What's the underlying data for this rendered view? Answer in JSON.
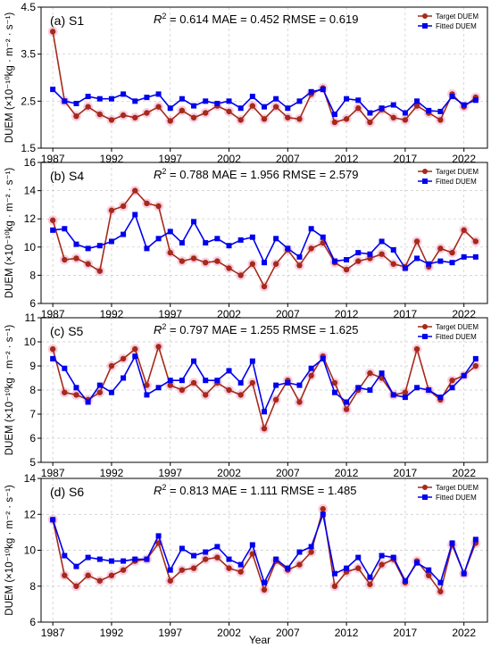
{
  "chart_data": [
    {
      "type": "line",
      "panel_label": "(a) S1",
      "stats": {
        "r2": "0.614",
        "mae": "MAE = 0.452",
        "rmse": "RMSE = 0.619"
      },
      "ylabel": "DUEM (×10⁻¹⁰kg · m⁻² · s⁻¹)",
      "ylim": [
        1.5,
        4.5
      ],
      "yticks": [
        "1.5",
        "2.5",
        "3.5",
        "4.5"
      ],
      "xlim": [
        1986,
        2024
      ],
      "xticks": [
        "1987",
        "1992",
        "1997",
        "2002",
        "2007",
        "2012",
        "2017",
        "2022"
      ],
      "x": [
        1987,
        1988,
        1989,
        1990,
        1991,
        1992,
        1993,
        1994,
        1995,
        1996,
        1997,
        1998,
        1999,
        2000,
        2001,
        2002,
        2003,
        2004,
        2005,
        2006,
        2007,
        2008,
        2009,
        2010,
        2011,
        2012,
        2013,
        2014,
        2015,
        2016,
        2017,
        2018,
        2019,
        2020,
        2021,
        2022,
        2023
      ],
      "series": [
        {
          "name": "Target DUEM",
          "color": "#a52a1a",
          "marker": "circle",
          "values": [
            3.98,
            2.5,
            2.18,
            2.38,
            2.22,
            2.1,
            2.2,
            2.15,
            2.25,
            2.38,
            2.08,
            2.3,
            2.15,
            2.25,
            2.4,
            2.28,
            2.1,
            2.4,
            2.12,
            2.38,
            2.15,
            2.12,
            2.65,
            2.78,
            2.05,
            2.12,
            2.35,
            2.05,
            2.32,
            2.15,
            2.1,
            2.4,
            2.25,
            2.1,
            2.65,
            2.38,
            2.58
          ]
        },
        {
          "name": "Fitted DUEM",
          "color": "#0000ee",
          "marker": "square",
          "values": [
            2.75,
            2.5,
            2.45,
            2.6,
            2.55,
            2.55,
            2.65,
            2.5,
            2.58,
            2.65,
            2.35,
            2.55,
            2.4,
            2.5,
            2.45,
            2.5,
            2.35,
            2.6,
            2.38,
            2.55,
            2.35,
            2.5,
            2.7,
            2.75,
            2.22,
            2.55,
            2.52,
            2.25,
            2.35,
            2.42,
            2.25,
            2.5,
            2.3,
            2.28,
            2.6,
            2.42,
            2.52
          ]
        }
      ]
    },
    {
      "type": "line",
      "panel_label": "(b) S4",
      "stats": {
        "r2": "0.788",
        "mae": "MAE = 1.956",
        "rmse": "RMSE = 2.579"
      },
      "ylabel": "DUEM (×10⁻¹⁰kg · m⁻² · s⁻¹)",
      "ylim": [
        6,
        16
      ],
      "yticks": [
        "6",
        "8",
        "10",
        "12",
        "14",
        "16"
      ],
      "xlim": [
        1986,
        2024
      ],
      "xticks": [
        "1987",
        "1992",
        "1997",
        "2002",
        "2007",
        "2012",
        "2017",
        "2022"
      ],
      "x": [
        1987,
        1988,
        1989,
        1990,
        1991,
        1992,
        1993,
        1994,
        1995,
        1996,
        1997,
        1998,
        1999,
        2000,
        2001,
        2002,
        2003,
        2004,
        2005,
        2006,
        2007,
        2008,
        2009,
        2010,
        2011,
        2012,
        2013,
        2014,
        2015,
        2016,
        2017,
        2018,
        2019,
        2020,
        2021,
        2022,
        2023
      ],
      "series": [
        {
          "name": "Target DUEM",
          "color": "#a52a1a",
          "marker": "circle",
          "values": [
            11.9,
            9.1,
            9.2,
            8.8,
            8.3,
            12.6,
            12.9,
            14.0,
            13.1,
            12.9,
            9.6,
            9.0,
            9.2,
            8.9,
            9.0,
            8.5,
            8.0,
            8.8,
            7.2,
            8.8,
            9.8,
            8.7,
            9.9,
            10.3,
            8.9,
            8.4,
            9.0,
            9.2,
            9.5,
            8.8,
            8.6,
            10.4,
            8.6,
            9.9,
            9.6,
            11.2,
            10.4
          ]
        },
        {
          "name": "Fitted DUEM",
          "color": "#0000ee",
          "marker": "square",
          "values": [
            11.2,
            11.3,
            10.2,
            9.9,
            10.1,
            10.4,
            10.9,
            12.3,
            9.9,
            10.6,
            11.1,
            10.3,
            11.8,
            10.3,
            10.6,
            10.1,
            10.5,
            10.7,
            8.9,
            10.6,
            9.9,
            9.3,
            11.3,
            10.7,
            9.0,
            9.1,
            9.6,
            9.5,
            10.4,
            9.8,
            8.5,
            9.2,
            8.8,
            9.0,
            8.9,
            9.3,
            9.3
          ]
        }
      ]
    },
    {
      "type": "line",
      "panel_label": "(c) S5",
      "stats": {
        "r2": "0.797",
        "mae": "MAE = 1.255",
        "rmse": "RMSE = 1.625"
      },
      "ylabel": "DUEM (×10⁻¹⁰kg · m⁻² · s⁻¹)",
      "ylim": [
        5,
        11
      ],
      "yticks": [
        "5",
        "6",
        "7",
        "8",
        "9",
        "10",
        "11"
      ],
      "xlim": [
        1986,
        2024
      ],
      "xticks": [
        "1987",
        "1992",
        "1997",
        "2002",
        "2007",
        "2012",
        "2017",
        "2022"
      ],
      "x": [
        1987,
        1988,
        1989,
        1990,
        1991,
        1992,
        1993,
        1994,
        1995,
        1996,
        1997,
        1998,
        1999,
        2000,
        2001,
        2002,
        2003,
        2004,
        2005,
        2006,
        2007,
        2008,
        2009,
        2010,
        2011,
        2012,
        2013,
        2014,
        2015,
        2016,
        2017,
        2018,
        2019,
        2020,
        2021,
        2022,
        2023
      ],
      "series": [
        {
          "name": "Target DUEM",
          "color": "#a52a1a",
          "marker": "circle",
          "values": [
            9.7,
            7.9,
            7.8,
            7.6,
            7.9,
            9.0,
            9.3,
            9.7,
            8.2,
            9.8,
            8.2,
            8.0,
            8.3,
            7.8,
            8.3,
            8.0,
            7.8,
            8.3,
            6.4,
            7.6,
            8.4,
            7.5,
            8.6,
            9.4,
            8.3,
            7.2,
            8.0,
            8.7,
            8.5,
            7.8,
            7.9,
            9.7,
            8.0,
            7.6,
            8.4,
            8.6,
            9.0
          ]
        },
        {
          "name": "Fitted DUEM",
          "color": "#0000ee",
          "marker": "square",
          "values": [
            9.3,
            8.9,
            8.1,
            7.5,
            8.2,
            7.9,
            8.5,
            9.4,
            7.8,
            8.1,
            8.4,
            8.4,
            9.2,
            8.4,
            8.4,
            8.8,
            8.3,
            9.2,
            7.1,
            8.2,
            8.3,
            8.2,
            8.9,
            9.3,
            7.9,
            7.5,
            8.1,
            8.0,
            8.7,
            7.8,
            7.7,
            8.1,
            8.0,
            7.7,
            8.1,
            8.6,
            9.3
          ]
        }
      ]
    },
    {
      "type": "line",
      "panel_label": "(d) S6",
      "stats": {
        "r2": "0.813",
        "mae": "MAE = 1.111",
        "rmse": "RMSE = 1.485"
      },
      "ylabel": "DUEM (×10⁻¹⁰kg · m⁻² · s⁻¹)",
      "ylim": [
        6,
        14
      ],
      "yticks": [
        "6",
        "8",
        "10",
        "12",
        "14"
      ],
      "xlim": [
        1986,
        2024
      ],
      "xticks": [
        "1987",
        "1992",
        "1997",
        "2002",
        "2007",
        "2012",
        "2017",
        "2022"
      ],
      "x": [
        1987,
        1988,
        1989,
        1990,
        1991,
        1992,
        1993,
        1994,
        1995,
        1996,
        1997,
        1998,
        1999,
        2000,
        2001,
        2002,
        2003,
        2004,
        2005,
        2006,
        2007,
        2008,
        2009,
        2010,
        2011,
        2012,
        2013,
        2014,
        2015,
        2016,
        2017,
        2018,
        2019,
        2020,
        2021,
        2022,
        2023
      ],
      "series": [
        {
          "name": "Target DUEM",
          "color": "#a52a1a",
          "marker": "circle",
          "values": [
            11.7,
            8.6,
            8.0,
            8.6,
            8.3,
            8.6,
            8.9,
            9.4,
            9.5,
            10.4,
            8.3,
            8.9,
            9.0,
            9.5,
            9.6,
            9.0,
            8.8,
            9.8,
            7.8,
            9.4,
            8.9,
            9.2,
            9.9,
            12.3,
            8.0,
            8.8,
            9.0,
            8.1,
            9.2,
            9.5,
            8.2,
            9.4,
            8.6,
            7.7,
            10.3,
            8.7,
            10.4
          ]
        },
        {
          "name": "Fitted DUEM",
          "color": "#0000ee",
          "marker": "square",
          "values": [
            11.7,
            9.7,
            9.1,
            9.6,
            9.5,
            9.4,
            9.4,
            9.5,
            9.5,
            10.8,
            8.9,
            10.1,
            9.7,
            9.9,
            10.2,
            9.5,
            9.2,
            10.3,
            8.2,
            9.5,
            9.0,
            9.9,
            10.2,
            12.0,
            8.7,
            9.0,
            9.6,
            8.5,
            9.7,
            9.6,
            8.3,
            9.3,
            8.9,
            8.2,
            10.4,
            8.7,
            10.6
          ]
        }
      ]
    }
  ],
  "x_axis_title": "Year",
  "legend": {
    "target": "Target DUEM",
    "fitted": "Fitted DUEM"
  }
}
